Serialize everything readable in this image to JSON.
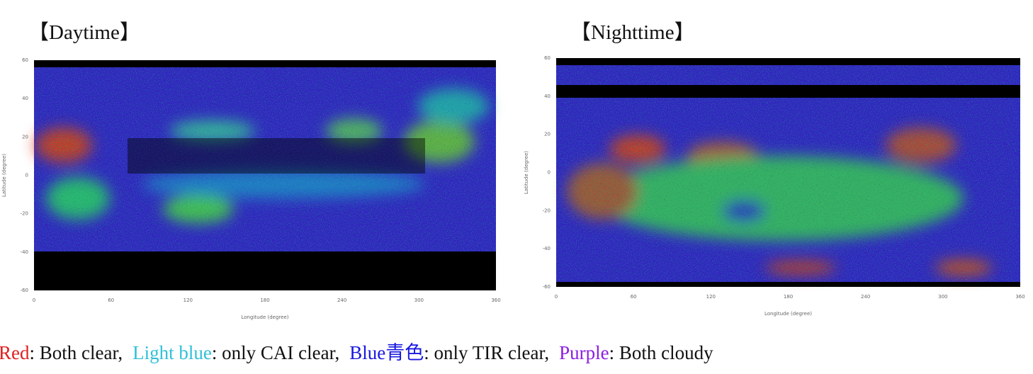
{
  "panels": [
    {
      "title": "【Daytime】",
      "x_axis_label": "Longitude (degree)",
      "y_axis_label": "Latitude (degree)",
      "x_ticks": [
        "0",
        "60",
        "120",
        "180",
        "240",
        "300",
        "360"
      ],
      "y_ticks": [
        "60",
        "40",
        "20",
        "0",
        "-20",
        "-40",
        "-60"
      ]
    },
    {
      "title": "【Nighttime】",
      "x_axis_label": "Longitude (degree)",
      "y_axis_label": "Latitude (degree)",
      "x_ticks": [
        "0",
        "60",
        "120",
        "180",
        "240",
        "300",
        "360"
      ],
      "y_ticks": [
        "60",
        "40",
        "20",
        "0",
        "-20",
        "-40",
        "-60"
      ]
    }
  ],
  "legend": [
    {
      "term": "Red",
      "description": ": Both clear,"
    },
    {
      "term": "Light blue",
      "description": ": only CAI clear,"
    },
    {
      "term": "Blue青色",
      "description": ": only TIR clear,"
    },
    {
      "term": "Purple",
      "description": ": Both cloudy"
    }
  ]
}
